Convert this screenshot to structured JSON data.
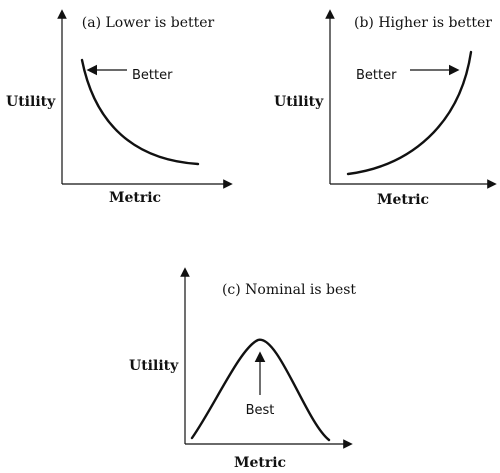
{
  "panels": [
    {
      "title": "(a) Lower is better",
      "ylabel": "Utility",
      "xlabel": "Metric",
      "annotation": "Better",
      "curve": "decreasing"
    },
    {
      "title": "(b) Higher is better",
      "ylabel": "Utility",
      "xlabel": "Metric",
      "annotation": "Better",
      "curve": "increasing"
    },
    {
      "title": "(c) Nominal is best",
      "ylabel": "Utility",
      "xlabel": "Metric",
      "annotation": "Best",
      "curve": "peak"
    }
  ],
  "colors": {
    "ink": "#111111",
    "background": "#ffffff"
  }
}
